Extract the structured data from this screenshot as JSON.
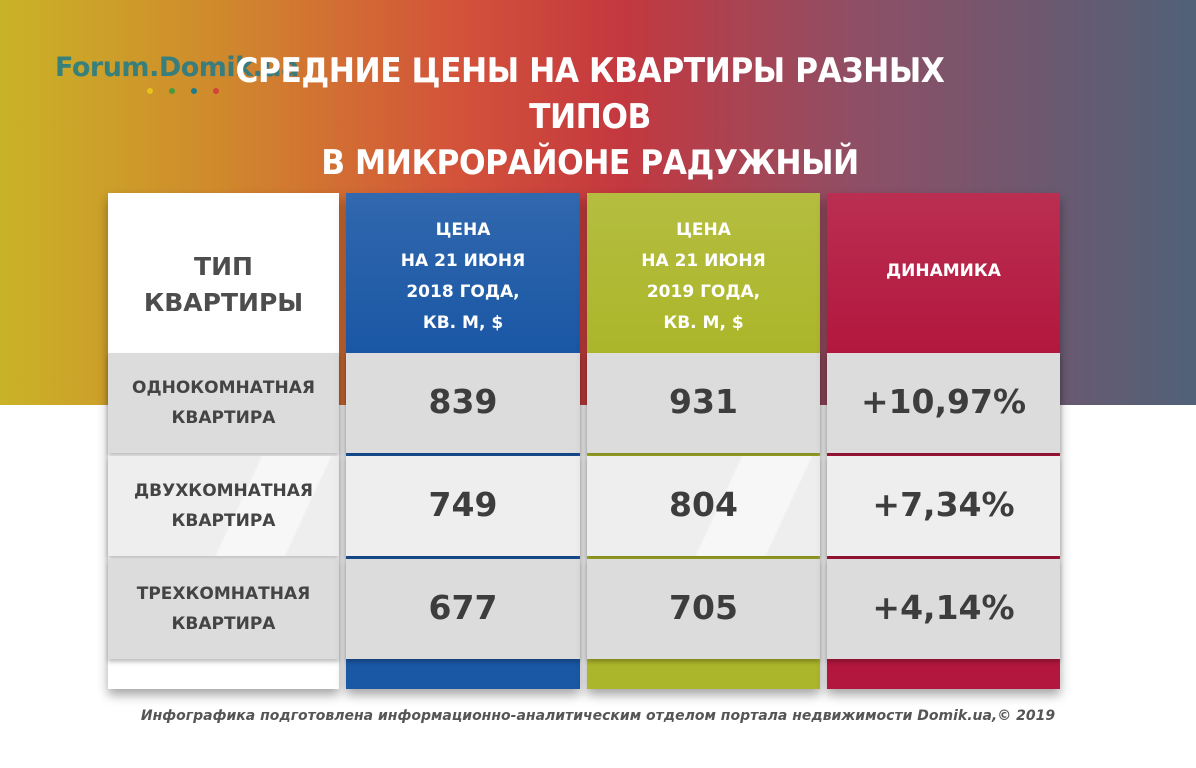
{
  "logo": {
    "text": "Forum.Domik.ua"
  },
  "title": {
    "line1": "СРЕДНИЕ ЦЕНЫ НА КВАРТИРЫ РАЗНЫХ ТИПОВ",
    "line2": "В МИКРОРАЙОНЕ РАДУЖНЫЙ"
  },
  "table": {
    "headers": {
      "type": [
        "ТИП",
        "КВАРТИРЫ"
      ],
      "price_2018": [
        "ЦЕНА",
        "НА 21 ИЮНЯ",
        "2018 ГОДА,",
        "КВ. М, $"
      ],
      "price_2019": [
        "ЦЕНА",
        "НА 21 ИЮНЯ",
        "2019 ГОДА,",
        "КВ. М, $"
      ],
      "dynamics": "ДИНАМИКА"
    },
    "rows": [
      {
        "type": [
          "ОДНОКОМНАТНАЯ",
          "КВАРТИРА"
        ],
        "price_2018": "839",
        "price_2019": "931",
        "dynamics": "+10,97%"
      },
      {
        "type": [
          "ДВУХКОМНАТНАЯ",
          "КВАРТИРА"
        ],
        "price_2018": "749",
        "price_2019": "804",
        "dynamics": "+7,34%"
      },
      {
        "type": [
          "ТРЕХКОМНАТНАЯ",
          "КВАРТИРА"
        ],
        "price_2018": "677",
        "price_2019": "705",
        "dynamics": "+4,14%"
      }
    ]
  },
  "colors": {
    "col_2018": "#1a57a5",
    "col_2019": "#acb62a",
    "col_dynamics": "#b3173e"
  },
  "footer": "Инфографика подготовлена информационно-аналитическим отделом портала недвижимости Domik.ua,© 2019"
}
